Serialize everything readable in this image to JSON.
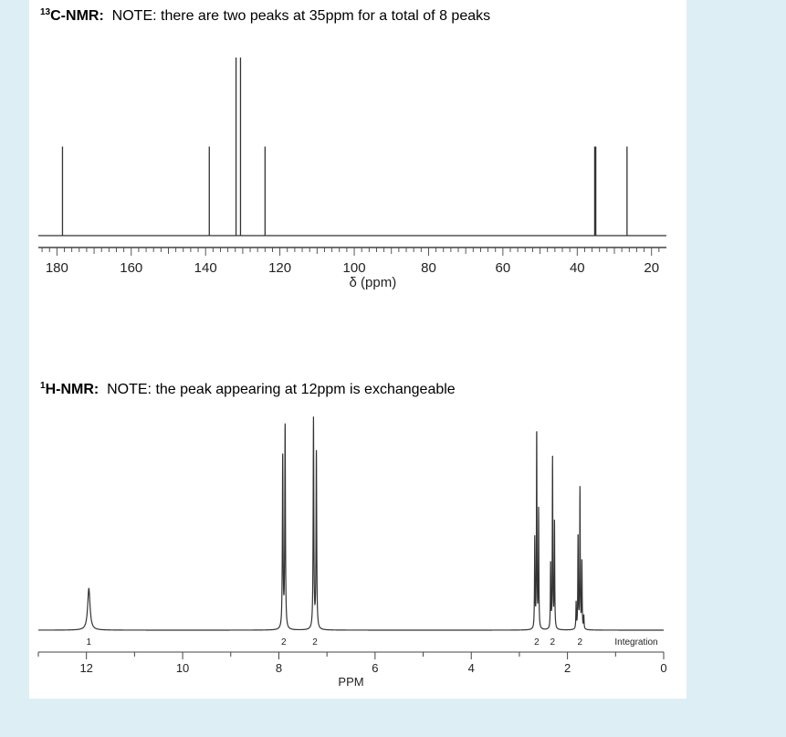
{
  "c13_heading": {
    "prefix_sup": "13",
    "prefix_bold": "C-NMR:",
    "note": "NOTE: there are two peaks at 35ppm for a total of 8 peaks"
  },
  "h1_heading": {
    "prefix_sup": "1",
    "prefix_bold": "H-NMR:",
    "note": "NOTE: the peak appearing at 12ppm is exchangeable"
  },
  "chart_data": [
    {
      "type": "line",
      "name": "13C-NMR spectrum",
      "xlabel": "δ (ppm)",
      "xlim": [
        185,
        16
      ],
      "x_reversed": true,
      "x_ticks": [
        180,
        160,
        140,
        120,
        100,
        80,
        60,
        40,
        20
      ],
      "ylim": [
        0,
        1
      ],
      "peaks": [
        {
          "ppm": 178.5,
          "height": 0.5
        },
        {
          "ppm": 139.0,
          "height": 0.5
        },
        {
          "ppm": 131.8,
          "height": 1.0
        },
        {
          "ppm": 130.6,
          "height": 1.0
        },
        {
          "ppm": 124.0,
          "height": 0.5
        },
        {
          "ppm": 35.3,
          "height": 0.5
        },
        {
          "ppm": 35.0,
          "height": 0.5
        },
        {
          "ppm": 26.6,
          "height": 0.5
        }
      ],
      "line_color": "#333333"
    },
    {
      "type": "line",
      "name": "1H-NMR spectrum",
      "xlabel": "PPM",
      "xlim": [
        13.0,
        0
      ],
      "x_reversed": true,
      "x_ticks": [
        12,
        10,
        8,
        6,
        4,
        2,
        0
      ],
      "ylim": [
        0,
        1
      ],
      "peaks": [
        {
          "ppm": 11.95,
          "height": 0.19,
          "width": 0.03
        },
        {
          "ppm": 7.92,
          "height": 0.79,
          "width": 0.008
        },
        {
          "ppm": 7.87,
          "height": 0.93,
          "width": 0.008
        },
        {
          "ppm": 7.28,
          "height": 0.96,
          "width": 0.008
        },
        {
          "ppm": 7.22,
          "height": 0.81,
          "width": 0.008
        },
        {
          "ppm": 2.68,
          "height": 0.41,
          "width": 0.006
        },
        {
          "ppm": 2.64,
          "height": 0.91,
          "width": 0.006
        },
        {
          "ppm": 2.6,
          "height": 0.54,
          "width": 0.006
        },
        {
          "ppm": 2.35,
          "height": 0.3,
          "width": 0.006
        },
        {
          "ppm": 2.31,
          "height": 0.78,
          "width": 0.006
        },
        {
          "ppm": 2.27,
          "height": 0.49,
          "width": 0.006
        },
        {
          "ppm": 1.82,
          "height": 0.12,
          "width": 0.006
        },
        {
          "ppm": 1.78,
          "height": 0.43,
          "width": 0.006
        },
        {
          "ppm": 1.74,
          "height": 0.64,
          "width": 0.006
        },
        {
          "ppm": 1.7,
          "height": 0.31,
          "width": 0.006
        },
        {
          "ppm": 1.66,
          "height": 0.06,
          "width": 0.006
        }
      ],
      "integration_label": "Integration",
      "integrations": [
        {
          "ppm": 11.95,
          "value": "1"
        },
        {
          "ppm": 7.9,
          "value": "2"
        },
        {
          "ppm": 7.25,
          "value": "2"
        },
        {
          "ppm": 2.64,
          "value": "2"
        },
        {
          "ppm": 2.31,
          "value": "2"
        },
        {
          "ppm": 1.74,
          "value": "2"
        }
      ],
      "line_color": "#333333"
    }
  ]
}
